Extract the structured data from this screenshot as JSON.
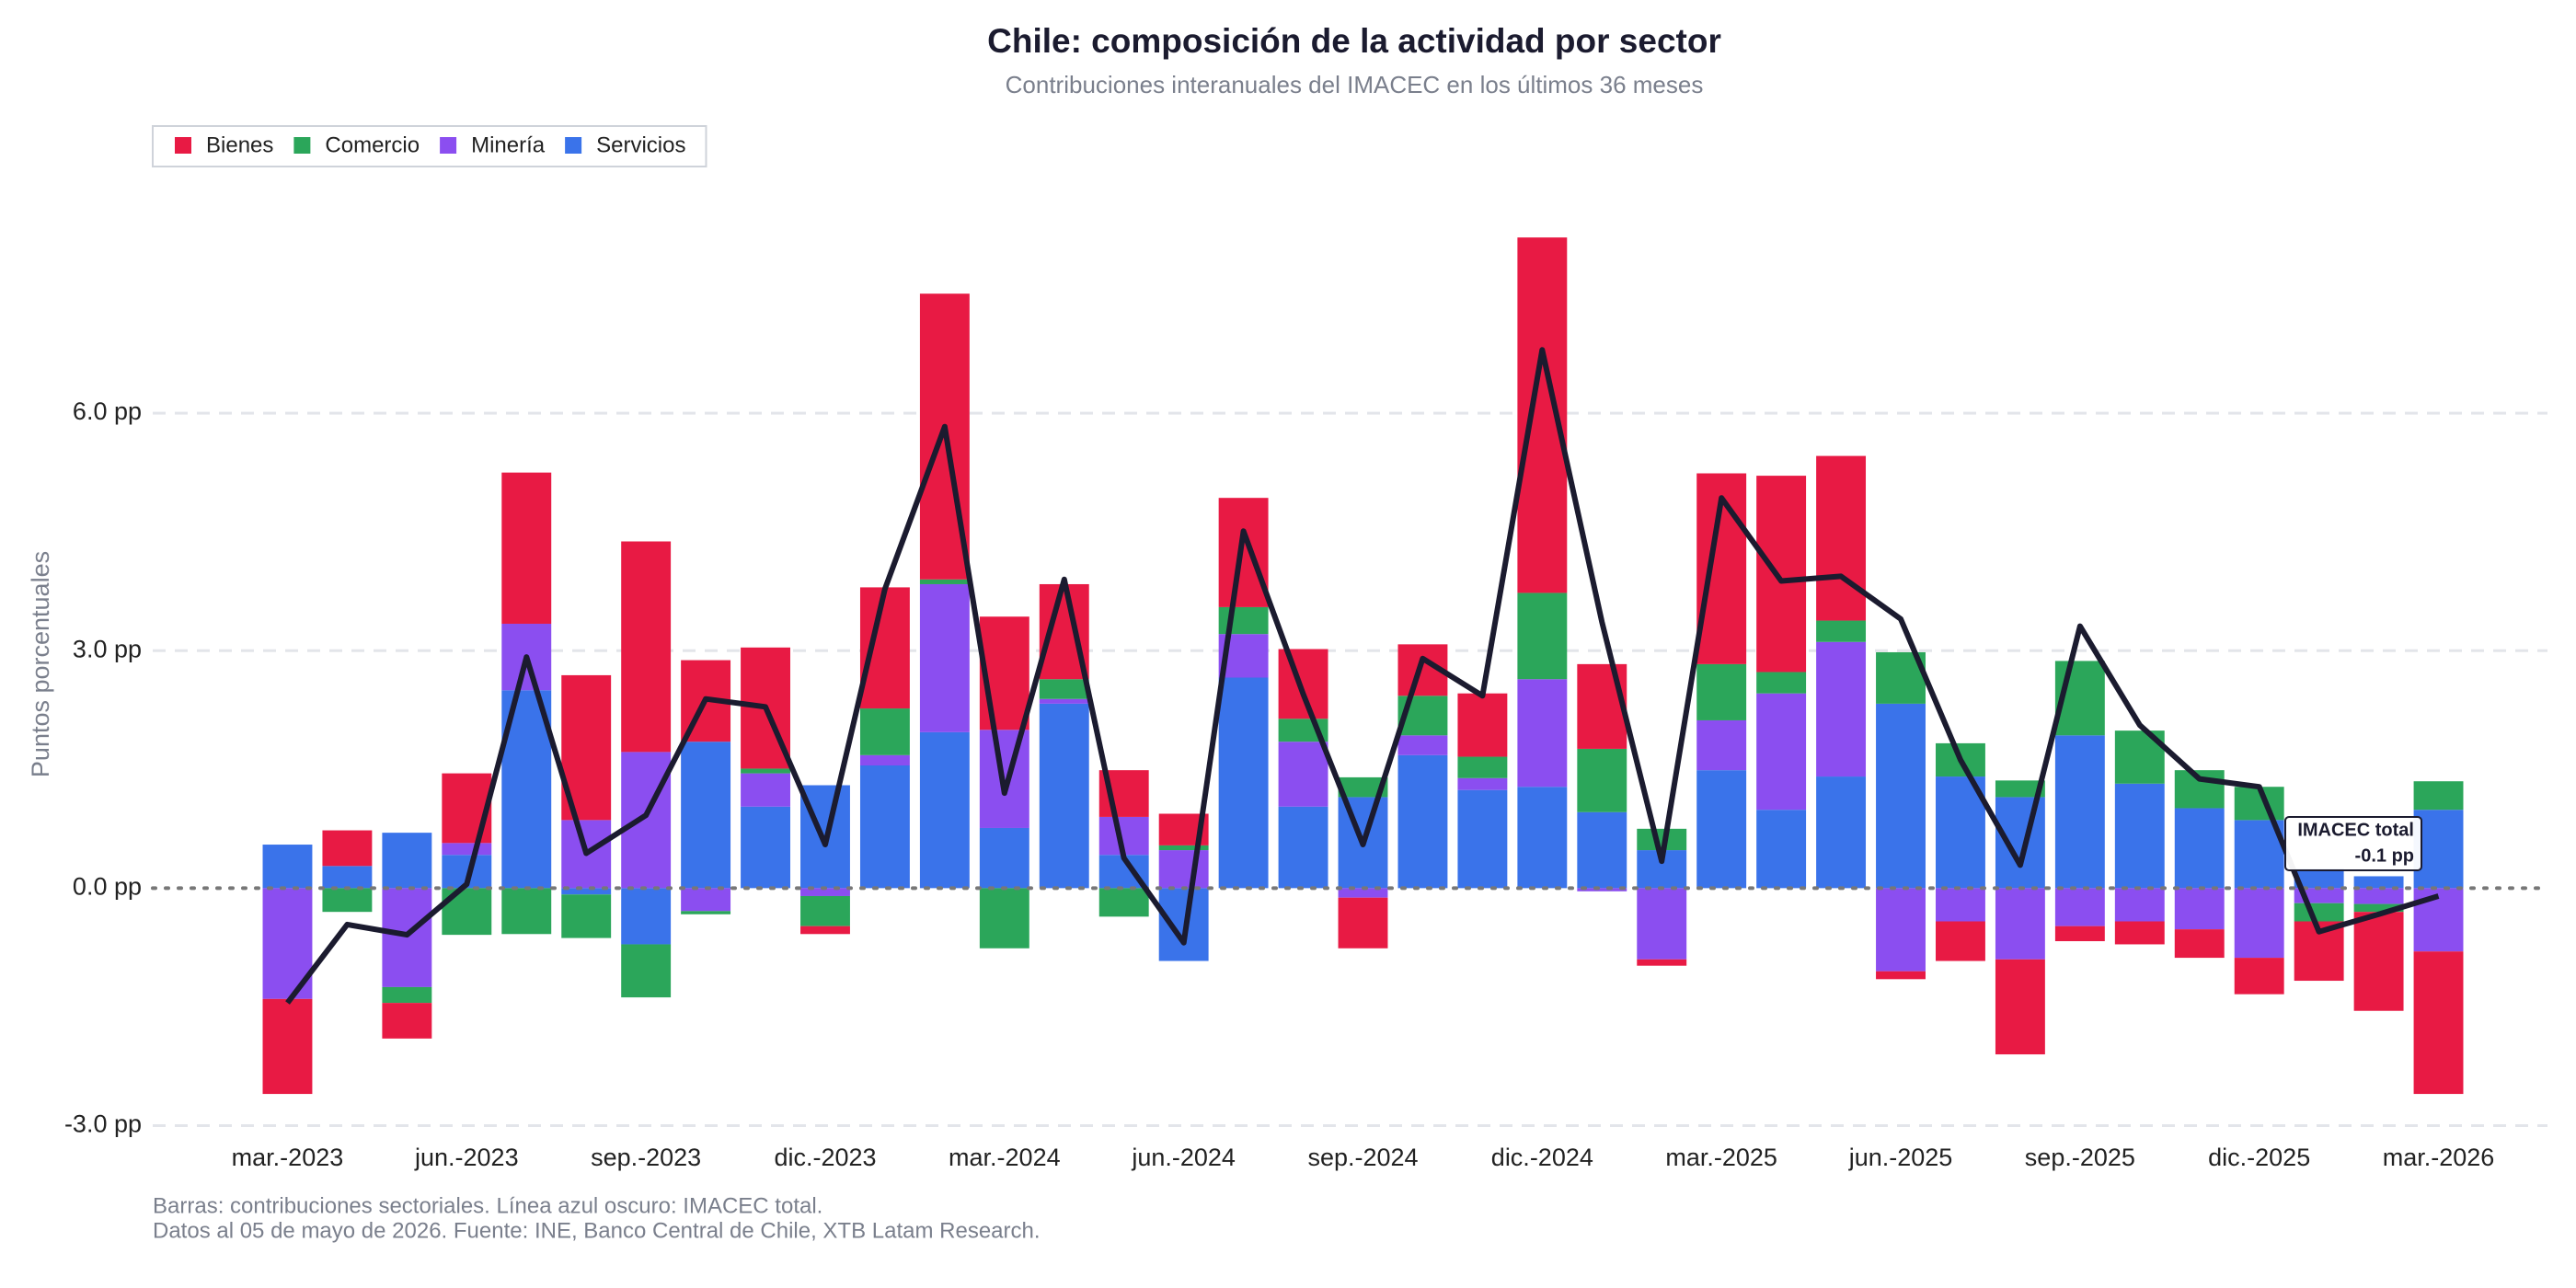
{
  "chart_data": {
    "type": "bar",
    "title": "Chile: composición de la actividad por sector",
    "subtitle": "Contribuciones interanuales del IMACEC en los últimos 36 meses",
    "y_label": "Puntos porcentuales",
    "footnotes": [
      "Barras: contribuciones sectoriales. Línea azul oscuro: IMACEC total.",
      "Datos al 05 de mayo de 2026. Fuente: INE, Banco Central de Chile, XTB Latam Research."
    ],
    "categories": [
      "mar.-2023",
      null,
      null,
      "jun.-2023",
      null,
      null,
      "sep.-2023",
      null,
      null,
      "dic.-2023",
      null,
      null,
      "mar.-2024",
      null,
      null,
      "jun.-2024",
      null,
      null,
      "sep.-2024",
      null,
      null,
      "dic.-2024",
      null,
      null,
      "mar.-2025",
      null,
      null,
      "jun.-2025",
      null,
      null,
      "sep.-2025",
      null,
      null,
      "dic.-2025",
      null,
      null,
      "mar.-2026"
    ],
    "series": [
      {
        "name": "Bienes",
        "color": "#e81a44",
        "values": [
          -1.2,
          0.45,
          -0.45,
          0.88,
          1.91,
          1.83,
          2.66,
          1.03,
          1.53,
          -0.1,
          1.53,
          3.61,
          1.43,
          1.2,
          0.59,
          0.4,
          1.38,
          0.88,
          -0.64,
          0.65,
          0.8,
          4.49,
          1.07,
          -0.08,
          2.41,
          2.48,
          2.08,
          -0.1,
          -0.5,
          -1.2,
          -0.19,
          -0.29,
          -0.36,
          -0.46,
          -0.75,
          -1.25,
          -1.8
        ]
      },
      {
        "name": "Comercio",
        "color": "#2ba65a",
        "values": [
          0,
          -0.3,
          -0.2,
          -0.59,
          -0.58,
          -0.55,
          -0.67,
          -0.04,
          0.06,
          -0.38,
          0.59,
          0.06,
          -0.76,
          0.25,
          -0.36,
          0.06,
          0.34,
          0.29,
          0.25,
          0.5,
          0.27,
          1.09,
          0.8,
          0.27,
          0.71,
          0.27,
          0.27,
          0.65,
          0.42,
          0.21,
          0.94,
          0.67,
          0.48,
          0.42,
          -0.23,
          -0.1,
          0.36
        ]
      },
      {
        "name": "Minería",
        "color": "#8b4ef0",
        "values": [
          -1.4,
          0,
          -1.25,
          0.15,
          0.84,
          0.86,
          1.72,
          -0.29,
          0.42,
          -0.1,
          0.13,
          1.87,
          1.24,
          0.06,
          0.48,
          0.48,
          0.55,
          0.82,
          -0.12,
          0.25,
          0.15,
          1.36,
          -0.04,
          -0.9,
          0.63,
          1.47,
          1.7,
          -1.05,
          -0.42,
          -0.9,
          -0.48,
          -0.42,
          -0.52,
          -0.88,
          -0.19,
          -0.2,
          -0.8
        ]
      },
      {
        "name": "Servicios",
        "color": "#3a73ea",
        "values": [
          0.55,
          0.28,
          0.7,
          0.42,
          2.5,
          -0.08,
          -0.71,
          1.85,
          1.03,
          1.3,
          1.55,
          1.97,
          0.76,
          2.33,
          0.42,
          -0.92,
          2.66,
          1.03,
          1.15,
          1.68,
          1.24,
          1.28,
          0.96,
          0.48,
          1.49,
          0.99,
          1.41,
          2.33,
          1.41,
          1.15,
          1.93,
          1.32,
          1.01,
          0.86,
          0.25,
          0.15,
          0.99
        ]
      }
    ],
    "line": {
      "name": "IMACEC total",
      "color": "#1b1b2f",
      "end_label": "-0.1 pp",
      "values": [
        -1.45,
        -0.46,
        -0.59,
        0.05,
        2.92,
        0.44,
        0.92,
        2.39,
        2.29,
        0.55,
        3.78,
        5.83,
        1.2,
        3.9,
        0.38,
        -0.69,
        4.51,
        2.45,
        0.55,
        2.9,
        2.43,
        6.8,
        3.36,
        0.34,
        4.93,
        3.88,
        3.94,
        3.4,
        1.62,
        0.29,
        3.31,
        2.06,
        1.38,
        1.28,
        -0.55,
        -0.33,
        -0.1
      ]
    },
    "ylim": [
      -3.25,
      9.0
    ],
    "yticks": [
      {
        "value": -3,
        "label": "-3.0 pp"
      },
      {
        "value": 0,
        "label": "0.0 pp"
      },
      {
        "value": 3,
        "label": "3.0 pp"
      },
      {
        "value": 6,
        "label": "6.0 pp"
      }
    ],
    "grid": true,
    "legend": "top-left"
  }
}
